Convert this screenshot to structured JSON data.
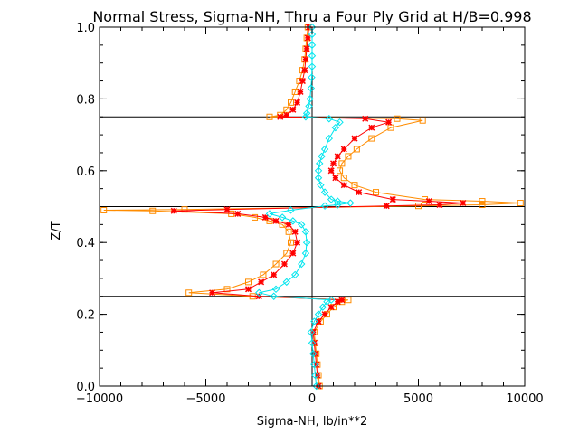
{
  "chart_data": {
    "type": "line",
    "title": "Normal Stress, Sigma-NH, Thru a Four Ply Grid at H/B=0.998",
    "xlabel": "Sigma-NH,  lb/in**2",
    "ylabel": "Z/T",
    "xlim": [
      -10000,
      10000
    ],
    "ylim": [
      0.0,
      1.0
    ],
    "x_ticks": [
      -10000,
      -5000,
      0,
      5000,
      10000
    ],
    "x_tick_labels": [
      "−10000",
      "−5000",
      "0",
      "5000",
      "10000"
    ],
    "y_ticks": [
      0.0,
      0.2,
      0.4,
      0.6,
      0.8,
      1.0
    ],
    "y_tick_labels": [
      "0.0",
      "0.2",
      "0.4",
      "0.6",
      "0.8",
      "1.0"
    ],
    "grid": false,
    "reference_lines": {
      "horizontal_z": [
        0.25,
        0.5,
        0.75
      ],
      "vertical_x": [
        0
      ]
    },
    "series": [
      {
        "color": "#ff8c00",
        "marker": "square",
        "points": [
          [
            350,
            0.0
          ],
          [
            300,
            0.03
          ],
          [
            250,
            0.06
          ],
          [
            200,
            0.09
          ],
          [
            150,
            0.12
          ],
          [
            100,
            0.15
          ],
          [
            400,
            0.18
          ],
          [
            700,
            0.2
          ],
          [
            1000,
            0.22
          ],
          [
            1400,
            0.235
          ],
          [
            1700,
            0.24
          ],
          [
            -2800,
            0.25
          ],
          [
            -5800,
            0.26
          ],
          [
            -4000,
            0.27
          ],
          [
            -3000,
            0.29
          ],
          [
            -2300,
            0.31
          ],
          [
            -1700,
            0.34
          ],
          [
            -1200,
            0.37
          ],
          [
            -1000,
            0.4
          ],
          [
            -1100,
            0.43
          ],
          [
            -1400,
            0.45
          ],
          [
            -2000,
            0.46
          ],
          [
            -2700,
            0.47
          ],
          [
            -3800,
            0.48
          ],
          [
            -7500,
            0.488
          ],
          [
            -9800,
            0.49
          ],
          [
            -6000,
            0.492
          ],
          [
            5000,
            0.502
          ],
          [
            8000,
            0.505
          ],
          [
            9800,
            0.51
          ],
          [
            8000,
            0.515
          ],
          [
            5300,
            0.52
          ],
          [
            3000,
            0.54
          ],
          [
            2000,
            0.56
          ],
          [
            1500,
            0.58
          ],
          [
            1300,
            0.6
          ],
          [
            1400,
            0.62
          ],
          [
            1700,
            0.64
          ],
          [
            2100,
            0.66
          ],
          [
            2800,
            0.69
          ],
          [
            3700,
            0.72
          ],
          [
            5200,
            0.74
          ],
          [
            4000,
            0.745
          ],
          [
            -2000,
            0.75
          ],
          [
            -1500,
            0.755
          ],
          [
            -1200,
            0.77
          ],
          [
            -1000,
            0.79
          ],
          [
            -800,
            0.82
          ],
          [
            -600,
            0.85
          ],
          [
            -450,
            0.88
          ],
          [
            -350,
            0.91
          ],
          [
            -300,
            0.94
          ],
          [
            -250,
            0.97
          ],
          [
            -200,
            1.0
          ]
        ]
      },
      {
        "color": "#ff0000",
        "marker": "asterisk",
        "points": [
          [
            300,
            0.0
          ],
          [
            250,
            0.03
          ],
          [
            200,
            0.06
          ],
          [
            150,
            0.09
          ],
          [
            100,
            0.12
          ],
          [
            50,
            0.15
          ],
          [
            300,
            0.18
          ],
          [
            600,
            0.2
          ],
          [
            900,
            0.22
          ],
          [
            1200,
            0.235
          ],
          [
            1400,
            0.24
          ],
          [
            -2500,
            0.25
          ],
          [
            -4700,
            0.26
          ],
          [
            -3000,
            0.27
          ],
          [
            -2400,
            0.29
          ],
          [
            -1800,
            0.31
          ],
          [
            -1300,
            0.34
          ],
          [
            -900,
            0.37
          ],
          [
            -700,
            0.4
          ],
          [
            -800,
            0.43
          ],
          [
            -1100,
            0.45
          ],
          [
            -1700,
            0.46
          ],
          [
            -2200,
            0.47
          ],
          [
            -3500,
            0.48
          ],
          [
            -6500,
            0.488
          ],
          [
            -4000,
            0.492
          ],
          [
            3500,
            0.502
          ],
          [
            6000,
            0.505
          ],
          [
            7100,
            0.51
          ],
          [
            5500,
            0.515
          ],
          [
            3800,
            0.52
          ],
          [
            2200,
            0.54
          ],
          [
            1500,
            0.56
          ],
          [
            1100,
            0.58
          ],
          [
            900,
            0.6
          ],
          [
            1000,
            0.62
          ],
          [
            1200,
            0.64
          ],
          [
            1500,
            0.66
          ],
          [
            2000,
            0.69
          ],
          [
            2800,
            0.72
          ],
          [
            3600,
            0.735
          ],
          [
            2500,
            0.745
          ],
          [
            -1500,
            0.75
          ],
          [
            -1200,
            0.755
          ],
          [
            -900,
            0.77
          ],
          [
            -700,
            0.79
          ],
          [
            -550,
            0.82
          ],
          [
            -450,
            0.85
          ],
          [
            -350,
            0.88
          ],
          [
            -300,
            0.91
          ],
          [
            -250,
            0.94
          ],
          [
            -200,
            0.97
          ],
          [
            -150,
            1.0
          ]
        ]
      },
      {
        "color": "#00e5ee",
        "marker": "diamond",
        "points": [
          [
            200,
            0.0
          ],
          [
            150,
            0.03
          ],
          [
            100,
            0.06
          ],
          [
            50,
            0.09
          ],
          [
            0,
            0.12
          ],
          [
            -50,
            0.15
          ],
          [
            100,
            0.18
          ],
          [
            300,
            0.2
          ],
          [
            500,
            0.22
          ],
          [
            700,
            0.235
          ],
          [
            900,
            0.24
          ],
          [
            -1800,
            0.25
          ],
          [
            -2500,
            0.26
          ],
          [
            -1700,
            0.27
          ],
          [
            -1200,
            0.29
          ],
          [
            -800,
            0.31
          ],
          [
            -500,
            0.34
          ],
          [
            -300,
            0.37
          ],
          [
            -250,
            0.4
          ],
          [
            -300,
            0.43
          ],
          [
            -500,
            0.45
          ],
          [
            -900,
            0.46
          ],
          [
            -1400,
            0.47
          ],
          [
            -2000,
            0.48
          ],
          [
            -1000,
            0.49
          ],
          [
            600,
            0.502
          ],
          [
            1200,
            0.505
          ],
          [
            1800,
            0.51
          ],
          [
            1200,
            0.515
          ],
          [
            900,
            0.52
          ],
          [
            600,
            0.54
          ],
          [
            400,
            0.56
          ],
          [
            300,
            0.58
          ],
          [
            300,
            0.6
          ],
          [
            350,
            0.62
          ],
          [
            450,
            0.64
          ],
          [
            600,
            0.66
          ],
          [
            800,
            0.69
          ],
          [
            1100,
            0.72
          ],
          [
            1300,
            0.735
          ],
          [
            800,
            0.745
          ],
          [
            -300,
            0.75
          ],
          [
            -250,
            0.76
          ],
          [
            -150,
            0.78
          ],
          [
            -100,
            0.8
          ],
          [
            -50,
            0.83
          ],
          [
            -20,
            0.86
          ],
          [
            0,
            0.89
          ],
          [
            0,
            0.92
          ],
          [
            0,
            0.95
          ],
          [
            0,
            0.98
          ],
          [
            0,
            1.0
          ]
        ]
      }
    ]
  }
}
